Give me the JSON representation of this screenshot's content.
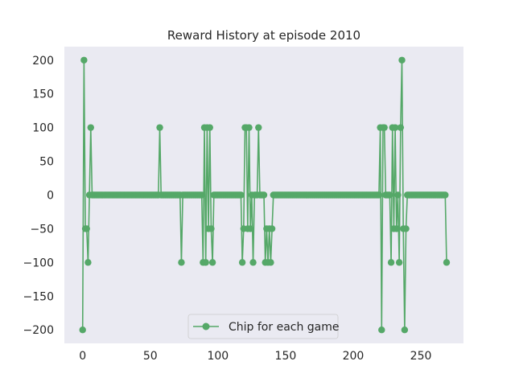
{
  "chart_data": {
    "type": "line",
    "title": "Reward History at episode 2010",
    "xlabel": "",
    "ylabel": "",
    "xlim": [
      -13.5,
      281.5
    ],
    "ylim": [
      -220,
      220
    ],
    "xticks": [
      0,
      50,
      100,
      150,
      200,
      250
    ],
    "yticks": [
      200,
      150,
      100,
      50,
      0,
      -50,
      -100,
      -150,
      -200
    ],
    "xtick_labels": [
      "0",
      "50",
      "100",
      "150",
      "200",
      "250"
    ],
    "ytick_labels": [
      "200",
      "150",
      "100",
      "50",
      "0",
      "−50",
      "−100",
      "−150",
      "−200"
    ],
    "grid": false,
    "legend_position": "lower center",
    "colors": {
      "series": "#55a868",
      "axes_bg": "#eaeaf2"
    },
    "series": [
      {
        "name": "Chip for each game",
        "marker": "circle",
        "x": [
          0,
          1,
          2,
          3,
          4,
          5,
          6,
          7,
          8,
          9,
          10,
          11,
          12,
          13,
          14,
          15,
          16,
          17,
          18,
          19,
          20,
          21,
          22,
          23,
          24,
          25,
          26,
          27,
          28,
          29,
          30,
          31,
          32,
          33,
          34,
          35,
          36,
          37,
          38,
          39,
          40,
          41,
          42,
          43,
          44,
          45,
          46,
          47,
          48,
          49,
          50,
          51,
          52,
          53,
          54,
          55,
          56,
          57,
          58,
          59,
          60,
          61,
          62,
          63,
          64,
          65,
          66,
          67,
          68,
          69,
          70,
          71,
          72,
          73,
          74,
          75,
          76,
          77,
          78,
          79,
          80,
          81,
          82,
          83,
          84,
          85,
          86,
          87,
          88,
          89,
          90,
          91,
          92,
          93,
          94,
          95,
          96,
          97,
          98,
          99,
          100,
          101,
          102,
          103,
          104,
          105,
          106,
          107,
          108,
          109,
          110,
          111,
          112,
          113,
          114,
          115,
          116,
          117,
          118,
          119,
          120,
          121,
          122,
          123,
          124,
          125,
          126,
          127,
          128,
          129,
          130,
          131,
          132,
          133,
          134,
          135,
          136,
          137,
          138,
          139,
          140,
          141,
          142,
          143,
          144,
          145,
          146,
          147,
          148,
          149,
          150,
          151,
          152,
          153,
          154,
          155,
          156,
          157,
          158,
          159,
          160,
          161,
          162,
          163,
          164,
          165,
          166,
          167,
          168,
          169,
          170,
          171,
          172,
          173,
          174,
          175,
          176,
          177,
          178,
          179,
          180,
          181,
          182,
          183,
          184,
          185,
          186,
          187,
          188,
          189,
          190,
          191,
          192,
          193,
          194,
          195,
          196,
          197,
          198,
          199,
          200,
          201,
          202,
          203,
          204,
          205,
          206,
          207,
          208,
          209,
          210,
          211,
          212,
          213,
          214,
          215,
          216,
          217,
          218,
          219,
          220,
          221,
          222,
          223,
          224,
          225,
          226,
          227,
          228,
          229,
          230,
          231,
          232,
          233,
          234,
          235,
          236,
          237,
          238,
          239,
          240,
          241,
          242,
          243,
          244,
          245,
          246,
          247,
          248,
          249,
          250,
          251,
          252,
          253,
          254,
          255,
          256,
          257,
          258,
          259,
          260,
          261,
          262,
          263,
          264,
          265,
          266,
          267,
          268,
          269
        ],
        "y": [
          -200,
          200,
          -50,
          -50,
          -100,
          0,
          100,
          0,
          0,
          0,
          0,
          0,
          0,
          0,
          0,
          0,
          0,
          0,
          0,
          0,
          0,
          0,
          0,
          0,
          0,
          0,
          0,
          0,
          0,
          0,
          0,
          0,
          0,
          0,
          0,
          0,
          0,
          0,
          0,
          0,
          0,
          0,
          0,
          0,
          0,
          0,
          0,
          0,
          0,
          0,
          0,
          0,
          0,
          0,
          0,
          0,
          0,
          100,
          0,
          0,
          0,
          0,
          0,
          0,
          0,
          0,
          0,
          0,
          0,
          0,
          0,
          0,
          0,
          -100,
          0,
          0,
          0,
          0,
          0,
          0,
          0,
          0,
          0,
          0,
          0,
          0,
          0,
          0,
          0,
          -100,
          100,
          -100,
          100,
          -50,
          100,
          -50,
          -100,
          0,
          0,
          0,
          0,
          0,
          0,
          0,
          0,
          0,
          0,
          0,
          0,
          0,
          0,
          0,
          0,
          0,
          0,
          0,
          0,
          0,
          -100,
          -50,
          100,
          100,
          -50,
          100,
          -50,
          0,
          -100,
          0,
          0,
          0,
          100,
          0,
          0,
          0,
          0,
          -100,
          -50,
          -100,
          -50,
          -100,
          -50,
          0,
          0,
          0,
          0,
          0,
          0,
          0,
          0,
          0,
          0,
          0,
          0,
          0,
          0,
          0,
          0,
          0,
          0,
          0,
          0,
          0,
          0,
          0,
          0,
          0,
          0,
          0,
          0,
          0,
          0,
          0,
          0,
          0,
          0,
          0,
          0,
          0,
          0,
          0,
          0,
          0,
          0,
          0,
          0,
          0,
          0,
          0,
          0,
          0,
          0,
          0,
          0,
          0,
          0,
          0,
          0,
          0,
          0,
          0,
          0,
          0,
          0,
          0,
          0,
          0,
          0,
          0,
          0,
          0,
          0,
          0,
          0,
          0,
          0,
          0,
          0,
          0,
          0,
          0,
          100,
          -200,
          100,
          100,
          0,
          0,
          0,
          0,
          -100,
          100,
          -50,
          100,
          -50,
          0,
          -100,
          100,
          200,
          -50,
          -200,
          -50,
          0,
          0,
          0,
          0,
          0,
          0,
          0,
          0,
          0,
          0,
          0,
          0,
          0,
          0,
          0,
          0,
          0,
          0,
          0,
          0,
          0,
          0,
          0,
          0,
          0,
          0,
          0,
          0,
          0,
          -100
        ]
      }
    ]
  }
}
